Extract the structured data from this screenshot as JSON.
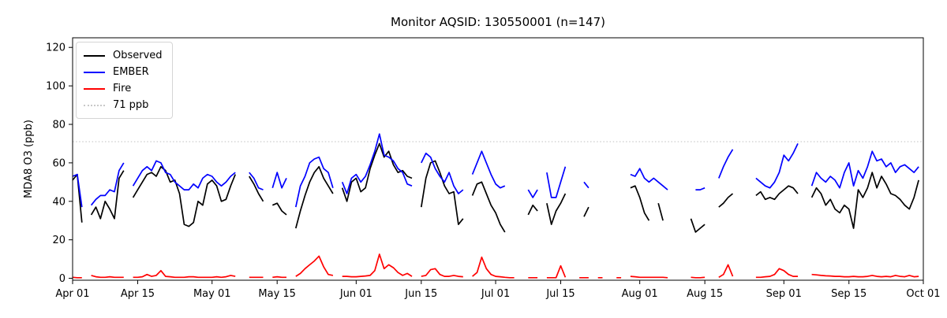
{
  "title": "Monitor AQSID: 130550001 (n=147)",
  "monitor_aqsid": "130550001",
  "n_observations": 147,
  "colors": {
    "observed": "#000000",
    "ember": "#0000ff",
    "fire": "#ff0000",
    "threshold": "#cccccc",
    "frame": "#000000",
    "background": "#ffffff"
  },
  "legend": {
    "items": [
      {
        "label": "Observed",
        "color": "#000000",
        "style": "solid"
      },
      {
        "label": "EMBER",
        "color": "#0000ff",
        "style": "solid"
      },
      {
        "label": "Fire",
        "color": "#ff0000",
        "style": "solid"
      },
      {
        "label": "71 ppb",
        "color": "#c8c8c8",
        "style": "dotted"
      }
    ]
  },
  "axes": {
    "ylabel": "MDA8 O3 (ppb)",
    "x_ticks": [
      {
        "day": 0,
        "label": "Apr 01"
      },
      {
        "day": 14,
        "label": "Apr 15"
      },
      {
        "day": 30,
        "label": "May 01"
      },
      {
        "day": 44,
        "label": "May 15"
      },
      {
        "day": 61,
        "label": "Jun 01"
      },
      {
        "day": 75,
        "label": "Jun 15"
      },
      {
        "day": 91,
        "label": "Jul 01"
      },
      {
        "day": 105,
        "label": "Jul 15"
      },
      {
        "day": 122,
        "label": "Aug 01"
      },
      {
        "day": 136,
        "label": "Aug 15"
      },
      {
        "day": 153,
        "label": "Sep 01"
      },
      {
        "day": 167,
        "label": "Sep 15"
      },
      {
        "day": 183,
        "label": "Oct 01"
      }
    ],
    "y_ticks": [
      {
        "value": 0,
        "label": "0"
      },
      {
        "value": 20,
        "label": "20"
      },
      {
        "value": 40,
        "label": "40"
      },
      {
        "value": 60,
        "label": "60"
      },
      {
        "value": 80,
        "label": "80"
      },
      {
        "value": 100,
        "label": "100"
      },
      {
        "value": 120,
        "label": "120"
      }
    ]
  },
  "chart_data": {
    "type": "line",
    "title": "Monitor AQSID: 130550001 (n=147)",
    "xlabel": "",
    "ylabel": "MDA8 O3 (ppb)",
    "x_unit": "day index from Apr 01 (daily values, Apr 01 - Oct 01)",
    "x_range_days": 183,
    "ylim": [
      -1,
      125
    ],
    "grid": false,
    "legend_position": "upper left",
    "threshold": {
      "value": 71,
      "label": "71 ppb",
      "style": "dotted",
      "color": "#c8c8c8"
    },
    "note": "null entries are missing days (gaps in the lines)",
    "series": [
      {
        "name": "Observed",
        "color": "#000000",
        "values": [
          51,
          54,
          29,
          null,
          33,
          37,
          31,
          40,
          36,
          31,
          52,
          56,
          null,
          42,
          46,
          50,
          54,
          55,
          53,
          58,
          56,
          50,
          51,
          44,
          28,
          27,
          29,
          40,
          38,
          49,
          51,
          48,
          40,
          41,
          48,
          54,
          null,
          null,
          53,
          49,
          44,
          40,
          null,
          38,
          39,
          35,
          33,
          null,
          26,
          35,
          43,
          50,
          55,
          58,
          52,
          48,
          44,
          null,
          47,
          40,
          50,
          52,
          45,
          47,
          57,
          64,
          70,
          63,
          66,
          59,
          55,
          56,
          53,
          52,
          null,
          37,
          52,
          60,
          61,
          55,
          48,
          44,
          45,
          28,
          31,
          null,
          43,
          49,
          50,
          44,
          38,
          34,
          28,
          24,
          null,
          null,
          null,
          null,
          33,
          38,
          35,
          null,
          39,
          28,
          35,
          39,
          44,
          null,
          null,
          null,
          32,
          37,
          null,
          null,
          null,
          null,
          null,
          null,
          null,
          null,
          47,
          48,
          42,
          34,
          30,
          null,
          39,
          30,
          null,
          null,
          null,
          null,
          null,
          31,
          24,
          26,
          28,
          null,
          null,
          37,
          39,
          42,
          44,
          null,
          null,
          null,
          null,
          43,
          45,
          41,
          42,
          41,
          44,
          46,
          48,
          47,
          44,
          null,
          null,
          42,
          47,
          44,
          38,
          41,
          36,
          34,
          38,
          36,
          26,
          46,
          42,
          47,
          55,
          47,
          53,
          49,
          44,
          43,
          41,
          38,
          36,
          42,
          51
        ]
      },
      {
        "name": "EMBER",
        "color": "#0000ff",
        "values": [
          53,
          54,
          37,
          null,
          38,
          41,
          43,
          43,
          46,
          45,
          56,
          60,
          null,
          48,
          52,
          56,
          58,
          56,
          61,
          60,
          55,
          54,
          50,
          48,
          46,
          46,
          49,
          47,
          52,
          54,
          53,
          50,
          48,
          50,
          53,
          55,
          null,
          null,
          55,
          52,
          47,
          46,
          null,
          47,
          55,
          47,
          52,
          null,
          37,
          48,
          53,
          60,
          62,
          63,
          57,
          55,
          47,
          null,
          50,
          44,
          52,
          54,
          50,
          53,
          59,
          66,
          75,
          64,
          63,
          61,
          57,
          55,
          49,
          48,
          null,
          60,
          65,
          63,
          57,
          53,
          50,
          55,
          48,
          44,
          46,
          null,
          54,
          60,
          66,
          60,
          54,
          49,
          47,
          48,
          null,
          null,
          null,
          null,
          46,
          42,
          46,
          null,
          55,
          42,
          42,
          50,
          58,
          null,
          null,
          null,
          50,
          47,
          null,
          null,
          null,
          null,
          null,
          null,
          null,
          null,
          54,
          53,
          57,
          52,
          50,
          52,
          50,
          48,
          46,
          null,
          null,
          null,
          null,
          null,
          46,
          46,
          47,
          null,
          null,
          52,
          58,
          63,
          67,
          null,
          null,
          null,
          null,
          52,
          50,
          48,
          47,
          50,
          55,
          64,
          61,
          65,
          70,
          null,
          null,
          48,
          55,
          52,
          50,
          53,
          51,
          47,
          55,
          60,
          48,
          56,
          52,
          58,
          66,
          61,
          62,
          58,
          60,
          55,
          58,
          59,
          57,
          55,
          58
        ]
      },
      {
        "name": "Fire",
        "color": "#ff0000",
        "values": [
          0.5,
          0.3,
          0.3,
          null,
          1.5,
          0.8,
          0.5,
          0.5,
          0.8,
          0.5,
          0.5,
          0.5,
          null,
          0.5,
          0.5,
          0.8,
          2,
          1,
          1.5,
          4,
          1,
          0.8,
          0.5,
          0.5,
          0.5,
          0.8,
          0.8,
          0.5,
          0.5,
          0.5,
          0.5,
          0.8,
          0.5,
          0.8,
          1.5,
          1,
          null,
          null,
          0.5,
          0.5,
          0.5,
          0.5,
          null,
          0.5,
          0.8,
          0.5,
          0.5,
          null,
          1,
          2.5,
          5,
          7,
          9,
          11.5,
          6,
          2,
          1.5,
          null,
          1,
          1,
          0.8,
          0.8,
          1,
          1.2,
          1.5,
          4,
          12.5,
          5,
          7,
          5.5,
          3,
          1.5,
          2.5,
          1,
          null,
          1,
          1.5,
          4.5,
          5,
          2,
          1,
          1,
          1.5,
          1,
          0.8,
          null,
          1,
          3,
          11,
          5,
          2,
          1,
          0.8,
          0.5,
          0.3,
          0.3,
          null,
          null,
          0.3,
          0.3,
          0.3,
          null,
          0.3,
          0.3,
          0.3,
          6.5,
          0.5,
          null,
          null,
          0.3,
          0.3,
          0.3,
          null,
          0.3,
          0.3,
          null,
          null,
          0.3,
          0.3,
          null,
          1,
          0.8,
          0.5,
          0.5,
          0.5,
          0.5,
          0.5,
          0.5,
          0.3,
          null,
          null,
          null,
          null,
          0.5,
          0.3,
          0.3,
          0.5,
          null,
          null,
          0.5,
          2,
          7,
          1,
          null,
          null,
          null,
          null,
          0.5,
          0.5,
          0.8,
          1,
          2,
          5,
          4,
          2,
          1,
          1,
          null,
          null,
          2,
          1.8,
          1.5,
          1.3,
          1.2,
          1,
          1,
          0.8,
          0.8,
          1,
          0.8,
          0.8,
          1,
          1.5,
          1,
          0.8,
          1,
          0.8,
          1.5,
          1,
          0.8,
          1.5,
          0.8,
          1
        ]
      }
    ]
  }
}
